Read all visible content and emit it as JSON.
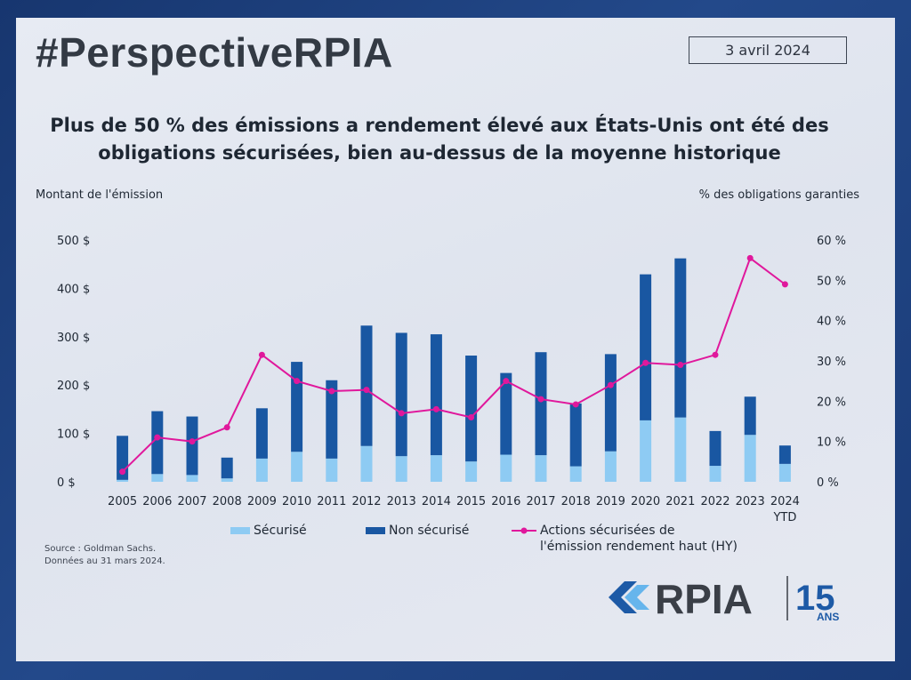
{
  "header": {
    "hashtag": "#PerspectiveRPIA",
    "date": "3 avril 2024"
  },
  "title_lines": [
    "Plus de 50 % des émissions a rendement élevé aux États-Unis ont été des",
    "obligations sécurisées, bien au-dessus de la moyenne historique"
  ],
  "footer": {
    "source_line1": "Source : Goldman Sachs.",
    "source_line2": "Données au 31 mars 2024."
  },
  "logo": {
    "brand": "RPIA",
    "years": "15",
    "years_suffix": "ANS"
  },
  "colors": {
    "secured": "#8ecbf3",
    "unsecured": "#1957a2",
    "line": "#e0189c"
  },
  "chart_data": {
    "type": "bar",
    "stacked": true,
    "title": "Plus de 50 % des émissions a rendement élevé aux États-Unis ont été des obligations sécurisées, bien au-dessus de la moyenne historique",
    "ylabel": "Montant de l'émission",
    "y2label": "% des obligations garanties",
    "ylim": [
      0,
      500
    ],
    "y2lim": [
      0,
      60
    ],
    "yticks": [
      "0 $",
      "100 $",
      "200 $",
      "300 $",
      "400 $",
      "500 $"
    ],
    "y2ticks": [
      "0 %",
      "10 %",
      "20 %",
      "30 %",
      "40 %",
      "50 %",
      "60 %"
    ],
    "categories": [
      "2005",
      "2006",
      "2007",
      "2008",
      "2009",
      "2010",
      "2011",
      "2012",
      "2013",
      "2014",
      "2015",
      "2016",
      "2017",
      "2018",
      "2019",
      "2020",
      "2021",
      "2022",
      "2023",
      "2024"
    ],
    "category_sublabels": {
      "2024": "YTD"
    },
    "grid": false,
    "legend_position": "bottom",
    "series": [
      {
        "name": "Sécurisé",
        "type": "bar",
        "axis": "left",
        "values": [
          4,
          16,
          14,
          7,
          48,
          62,
          48,
          74,
          53,
          55,
          42,
          56,
          55,
          32,
          63,
          127,
          133,
          33,
          97,
          37
        ]
      },
      {
        "name": "Non sécurisé",
        "type": "bar",
        "axis": "left",
        "values": [
          91,
          130,
          121,
          43,
          104,
          186,
          162,
          249,
          255,
          250,
          219,
          169,
          213,
          130,
          201,
          302,
          329,
          72,
          79,
          38
        ]
      },
      {
        "name": "Actions sécurisées de l'émission rendement haut (HY)",
        "type": "line",
        "axis": "right",
        "values": [
          2.5,
          11,
          10,
          13.5,
          31.5,
          25,
          22.5,
          22.8,
          17,
          18,
          16,
          25,
          20.5,
          19.2,
          24,
          29.5,
          29,
          31.5,
          55.5,
          49
        ]
      }
    ]
  }
}
